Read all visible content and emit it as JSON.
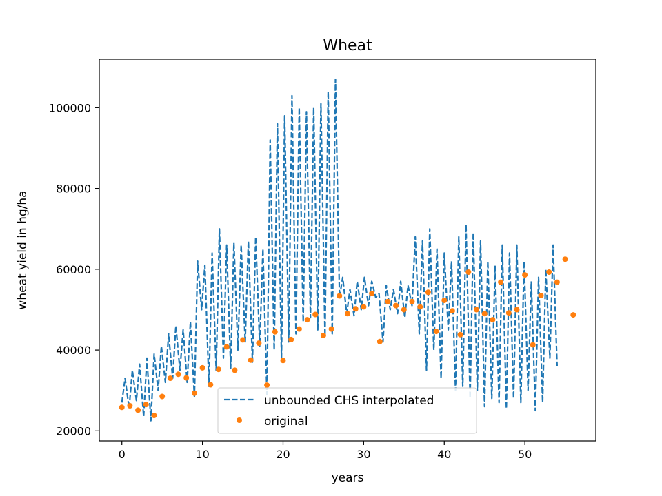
{
  "chart_data": {
    "type": "line",
    "title": "Wheat",
    "xlabel": "years",
    "ylabel": "wheat yield in hg/ha",
    "xlim": [
      -2.8,
      58.8
    ],
    "ylim": [
      17500,
      112000
    ],
    "xticks": [
      0,
      10,
      20,
      30,
      40,
      50
    ],
    "yticks": [
      20000,
      40000,
      60000,
      80000,
      100000
    ],
    "xtick_labels": [
      "0",
      "10",
      "20",
      "30",
      "40",
      "50"
    ],
    "ytick_labels": [
      "20000",
      "40000",
      "60000",
      "80000",
      "100000"
    ],
    "grid": false,
    "legend": {
      "position": "lower-center",
      "entries": [
        "unbounded CHS interpolated",
        "original"
      ]
    },
    "colors": {
      "interpolated": "#1f77b4",
      "original": "#ff7f0e"
    },
    "series": [
      {
        "name": "unbounded CHS interpolated",
        "style": "dashed-line",
        "note": "oscillating interpolation between original samples",
        "x": [
          0,
          0.4,
          0.9,
          1.3,
          1.8,
          2.2,
          2.7,
          3.1,
          3.6,
          4.0,
          4.5,
          4.9,
          5.4,
          5.8,
          6.3,
          6.7,
          7.2,
          7.6,
          8.1,
          8.5,
          9.0,
          9.4,
          9.9,
          10.3,
          10.8,
          11.2,
          11.7,
          12.1,
          12.6,
          13.0,
          13.5,
          13.9,
          14.4,
          14.8,
          15.3,
          15.7,
          16.2,
          16.6,
          17.1,
          17.5,
          18.0,
          18.4,
          18.9,
          19.3,
          19.8,
          20.2,
          20.7,
          21.1,
          21.6,
          22.0,
          22.5,
          22.9,
          23.4,
          23.8,
          24.3,
          24.7,
          25.2,
          25.6,
          26.1,
          26.5,
          27.0,
          27.4,
          27.9,
          28.3,
          28.8,
          29.2,
          29.7,
          30.1,
          30.6,
          31.0,
          31.5,
          31.9,
          32.4,
          32.8,
          33.3,
          33.7,
          34.2,
          34.6,
          35.1,
          35.5,
          36.0,
          36.4,
          36.9,
          37.3,
          37.8,
          38.2,
          38.7,
          39.1,
          39.6,
          40.0,
          40.5,
          40.9,
          41.4,
          41.8,
          42.3,
          42.7,
          43.2,
          43.6,
          44.1,
          44.5,
          45.0,
          45.4,
          45.9,
          46.3,
          46.8,
          47.2,
          47.7,
          48.1,
          48.6,
          49.0,
          49.5,
          49.9,
          50.4,
          50.8,
          51.3,
          51.7,
          52.2,
          52.6,
          53.1,
          53.5,
          54.0
        ],
        "y": [
          27000,
          33000,
          25500,
          35000,
          27500,
          36500,
          23500,
          38000,
          22500,
          39000,
          30000,
          41000,
          32000,
          44000,
          33000,
          46000,
          35000,
          45000,
          32000,
          47000,
          28500,
          62000,
          50000,
          61000,
          31000,
          64000,
          35000,
          70000,
          38000,
          66000,
          35500,
          66500,
          40000,
          66000,
          42000,
          67000,
          37000,
          68000,
          41000,
          65000,
          29000,
          92000,
          40000,
          96000,
          38000,
          98000,
          42000,
          103000,
          44000,
          100000,
          47000,
          99000,
          48000,
          100000,
          45000,
          101000,
          43500,
          104000,
          44000,
          107000,
          53000,
          58000,
          49000,
          55000,
          48500,
          57000,
          50000,
          58000,
          51000,
          57000,
          53000,
          54000,
          42000,
          56000,
          50000,
          55000,
          49000,
          57000,
          48000,
          56000,
          51000,
          68000,
          44000,
          67000,
          35000,
          70000,
          40000,
          65000,
          33000,
          64000,
          45000,
          62000,
          30000,
          68000,
          31000,
          71000,
          28000,
          69000,
          30000,
          67000,
          26000,
          62000,
          28000,
          61000,
          27000,
          66000,
          25500,
          64000,
          28000,
          66000,
          27000,
          62000,
          30000,
          57000,
          25000,
          58000,
          27000,
          60000,
          38000,
          66000,
          36000
        ]
      },
      {
        "name": "original",
        "style": "dots",
        "x": [
          0,
          1,
          2,
          3,
          4,
          5,
          6,
          7,
          8,
          9,
          10,
          11,
          12,
          13,
          14,
          15,
          16,
          17,
          18,
          19,
          20,
          21,
          22,
          23,
          24,
          25,
          26,
          27,
          28,
          29,
          30,
          31,
          32,
          33,
          34,
          35,
          36,
          37,
          38,
          39,
          40,
          41,
          42,
          43,
          44,
          45,
          46,
          47,
          48,
          49,
          50,
          51,
          52,
          53,
          54,
          55,
          56
        ],
        "y": [
          25800,
          26200,
          25100,
          26500,
          23800,
          28500,
          33000,
          34000,
          33100,
          29300,
          35600,
          31400,
          35200,
          40800,
          35000,
          42500,
          37500,
          41700,
          31300,
          44500,
          37400,
          42600,
          45200,
          47500,
          48800,
          43600,
          45200,
          53400,
          49000,
          50200,
          50700,
          54000,
          42100,
          52000,
          51000,
          50000,
          52000,
          50700,
          54300,
          44600,
          52300,
          49700,
          43800,
          59300,
          50000,
          49000,
          47500,
          56800,
          49200,
          50000,
          58600,
          41300,
          53500,
          59300,
          56800,
          62500,
          48700
        ]
      }
    ]
  }
}
